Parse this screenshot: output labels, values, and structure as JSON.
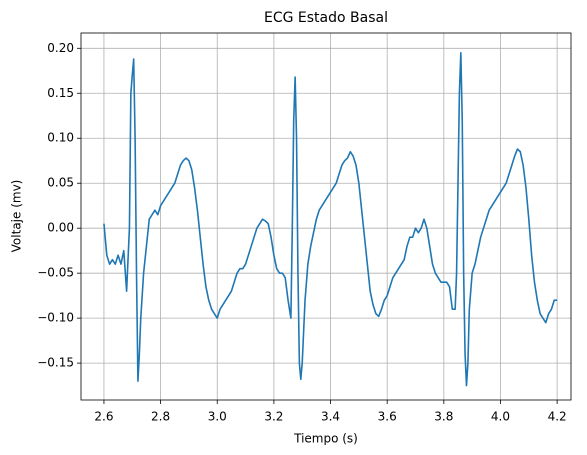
{
  "chart_data": {
    "type": "line",
    "title": "ECG Estado Basal",
    "x_label": "Tiempo (s)",
    "y_label": "Voltaje (mv)",
    "grid": true,
    "xlim": [
      2.519,
      4.249
    ],
    "ylim": [
      -0.191,
      0.217
    ],
    "xticks": [
      2.6,
      2.8,
      {
        "value": 3,
        "label": "3.0"
      },
      3.2,
      3.4,
      3.6,
      3.8,
      {
        "value": 4,
        "label": "4.0"
      },
      4.2
    ],
    "yticks": [
      {
        "value": -0.15,
        "label": "−0.15"
      },
      {
        "value": -0.1,
        "label": "−0.10"
      },
      {
        "value": -0.05,
        "label": "−0.05"
      },
      {
        "value": 0,
        "label": "0.00"
      },
      0.05,
      {
        "value": 0.1,
        "label": "0.10"
      },
      0.15,
      {
        "value": 0.2,
        "label": "0.20"
      }
    ],
    "x": [
      2.6,
      2.61,
      2.62,
      2.63,
      2.64,
      2.65,
      2.66,
      2.67,
      2.68,
      2.69,
      2.695,
      2.7,
      2.705,
      2.71,
      2.715,
      2.72,
      2.725,
      2.73,
      2.74,
      2.75,
      2.76,
      2.77,
      2.78,
      2.79,
      2.8,
      2.81,
      2.82,
      2.83,
      2.84,
      2.85,
      2.86,
      2.87,
      2.88,
      2.89,
      2.9,
      2.91,
      2.92,
      2.93,
      2.94,
      2.95,
      2.96,
      2.97,
      2.98,
      2.99,
      3.0,
      3.01,
      3.02,
      3.03,
      3.04,
      3.05,
      3.06,
      3.07,
      3.08,
      3.09,
      3.1,
      3.11,
      3.12,
      3.13,
      3.14,
      3.15,
      3.16,
      3.17,
      3.18,
      3.19,
      3.2,
      3.21,
      3.22,
      3.23,
      3.24,
      3.25,
      3.26,
      3.265,
      3.27,
      3.275,
      3.28,
      3.285,
      3.29,
      3.295,
      3.3,
      3.31,
      3.32,
      3.33,
      3.34,
      3.35,
      3.36,
      3.37,
      3.38,
      3.39,
      3.4,
      3.41,
      3.42,
      3.43,
      3.44,
      3.45,
      3.46,
      3.47,
      3.48,
      3.49,
      3.5,
      3.51,
      3.52,
      3.53,
      3.54,
      3.55,
      3.56,
      3.57,
      3.58,
      3.59,
      3.6,
      3.61,
      3.62,
      3.63,
      3.64,
      3.65,
      3.66,
      3.67,
      3.68,
      3.69,
      3.7,
      3.71,
      3.72,
      3.73,
      3.74,
      3.75,
      3.76,
      3.77,
      3.78,
      3.79,
      3.8,
      3.81,
      3.82,
      3.83,
      3.84,
      3.845,
      3.85,
      3.855,
      3.86,
      3.865,
      3.87,
      3.875,
      3.88,
      3.885,
      3.89,
      3.9,
      3.91,
      3.92,
      3.93,
      3.94,
      3.95,
      3.96,
      3.97,
      3.98,
      3.99,
      4.0,
      4.01,
      4.02,
      4.03,
      4.04,
      4.05,
      4.06,
      4.07,
      4.08,
      4.09,
      4.1,
      4.11,
      4.12,
      4.13,
      4.14,
      4.15,
      4.16,
      4.17,
      4.18,
      4.19,
      4.2
    ],
    "series": [
      {
        "name": "ECG",
        "color": "#1f77b4",
        "values": [
          0.005,
          -0.03,
          -0.04,
          -0.035,
          -0.04,
          -0.03,
          -0.04,
          -0.025,
          -0.07,
          0.0,
          0.15,
          0.17,
          0.188,
          0.1,
          -0.05,
          -0.17,
          -0.14,
          -0.1,
          -0.05,
          -0.02,
          0.01,
          0.015,
          0.02,
          0.015,
          0.025,
          0.03,
          0.035,
          0.04,
          0.045,
          0.05,
          0.06,
          0.07,
          0.075,
          0.078,
          0.075,
          0.065,
          0.045,
          0.02,
          -0.01,
          -0.04,
          -0.065,
          -0.08,
          -0.09,
          -0.095,
          -0.1,
          -0.09,
          -0.085,
          -0.08,
          -0.075,
          -0.07,
          -0.06,
          -0.05,
          -0.045,
          -0.045,
          -0.04,
          -0.03,
          -0.02,
          -0.01,
          0.0,
          0.005,
          0.01,
          0.008,
          0.005,
          -0.01,
          -0.03,
          -0.045,
          -0.05,
          -0.05,
          -0.055,
          -0.08,
          -0.1,
          0.0,
          0.12,
          0.168,
          0.1,
          -0.05,
          -0.15,
          -0.168,
          -0.15,
          -0.08,
          -0.04,
          -0.02,
          -0.005,
          0.01,
          0.02,
          0.025,
          0.03,
          0.035,
          0.04,
          0.045,
          0.05,
          0.06,
          0.07,
          0.075,
          0.078,
          0.085,
          0.08,
          0.07,
          0.05,
          0.02,
          -0.01,
          -0.04,
          -0.07,
          -0.085,
          -0.095,
          -0.098,
          -0.09,
          -0.08,
          -0.075,
          -0.065,
          -0.055,
          -0.05,
          -0.045,
          -0.04,
          -0.035,
          -0.02,
          -0.01,
          -0.01,
          0.0,
          -0.005,
          0.0,
          0.01,
          0.0,
          -0.02,
          -0.04,
          -0.05,
          -0.055,
          -0.06,
          -0.06,
          -0.06,
          -0.065,
          -0.09,
          -0.09,
          -0.05,
          0.05,
          0.15,
          0.195,
          0.12,
          -0.05,
          -0.14,
          -0.175,
          -0.15,
          -0.09,
          -0.05,
          -0.04,
          -0.025,
          -0.01,
          0.0,
          0.01,
          0.02,
          0.025,
          0.03,
          0.035,
          0.04,
          0.045,
          0.05,
          0.06,
          0.07,
          0.08,
          0.088,
          0.085,
          0.07,
          0.045,
          0.01,
          -0.03,
          -0.06,
          -0.08,
          -0.095,
          -0.1,
          -0.105,
          -0.095,
          -0.09,
          -0.08,
          -0.08
        ]
      }
    ]
  }
}
